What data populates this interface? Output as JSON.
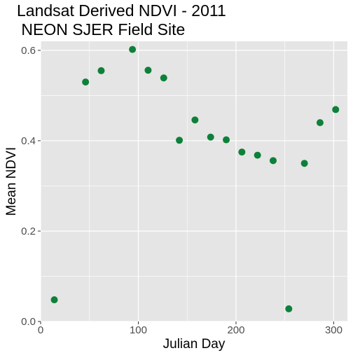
{
  "chart_data": {
    "type": "scatter",
    "title": "Landsat Derived NDVI - 2011",
    "subtitle": " NEON SJER Field Site",
    "xlabel": "Julian Day",
    "ylabel": "Mean NDVI",
    "xlim": [
      0,
      314
    ],
    "ylim": [
      0,
      0.62
    ],
    "xticks": [
      0,
      100,
      200,
      300
    ],
    "xtick_labels": [
      "0",
      "100",
      "200",
      "300"
    ],
    "yticks": [
      0.0,
      0.2,
      0.4,
      0.6
    ],
    "ytick_labels": [
      "0.0",
      "0.2",
      "0.4",
      "0.6"
    ],
    "grid": true,
    "legend": "none",
    "colors": {
      "panel": "#e5e5e5",
      "grid": "#ffffff",
      "point": "#0e803a"
    },
    "series": [
      {
        "x": [
          14,
          46,
          62,
          94,
          110,
          126,
          142,
          158,
          174,
          190,
          206,
          222,
          238,
          254,
          270,
          286,
          302
        ],
        "y": [
          0.048,
          0.53,
          0.555,
          0.602,
          0.556,
          0.539,
          0.401,
          0.446,
          0.408,
          0.402,
          0.375,
          0.368,
          0.356,
          0.028,
          0.35,
          0.44,
          0.469
        ]
      }
    ]
  }
}
